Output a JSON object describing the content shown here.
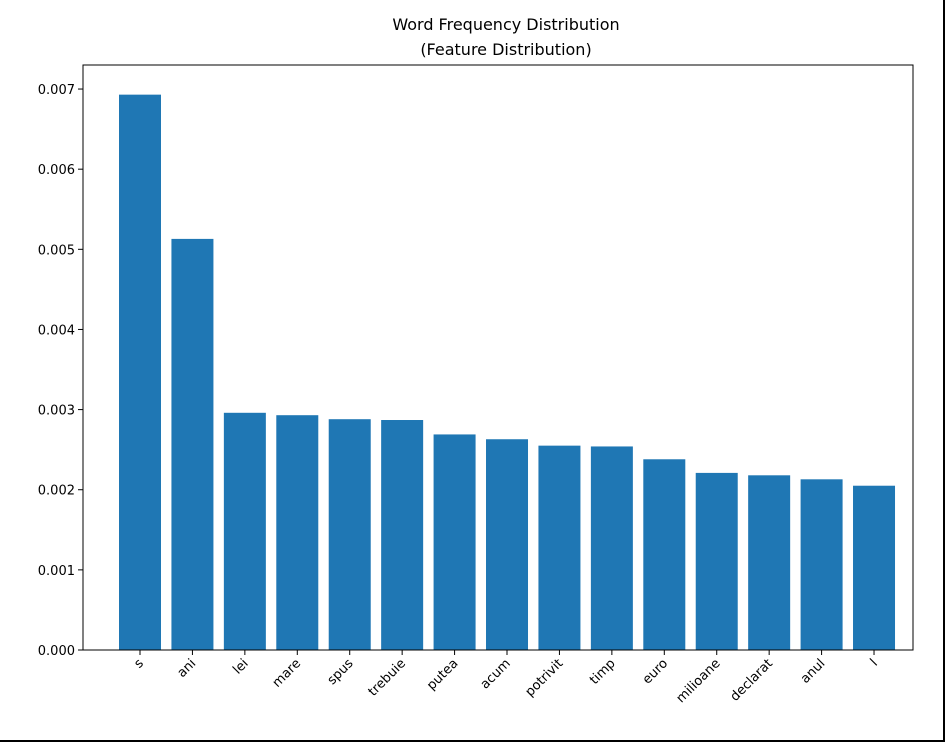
{
  "chart_data": {
    "type": "bar",
    "title": "Word Frequency Distribution",
    "subtitle": "(Feature Distribution)",
    "xlabel": "",
    "ylabel": "",
    "categories": [
      "s",
      "ani",
      "lei",
      "mare",
      "spus",
      "trebuie",
      "putea",
      "acum",
      "potrivit",
      "timp",
      "euro",
      "milioane",
      "declarat",
      "anul",
      "l"
    ],
    "values": [
      0.00693,
      0.00513,
      0.00296,
      0.00293,
      0.00288,
      0.00287,
      0.00269,
      0.00263,
      0.00255,
      0.00254,
      0.00238,
      0.00221,
      0.00218,
      0.00213,
      0.00205
    ],
    "ylim": [
      0,
      0.0073
    ],
    "yticks": [
      "0.000",
      "0.001",
      "0.002",
      "0.003",
      "0.004",
      "0.005",
      "0.006",
      "0.007"
    ],
    "bar_color": "#1f77b4",
    "grid": false,
    "legend": "none"
  }
}
